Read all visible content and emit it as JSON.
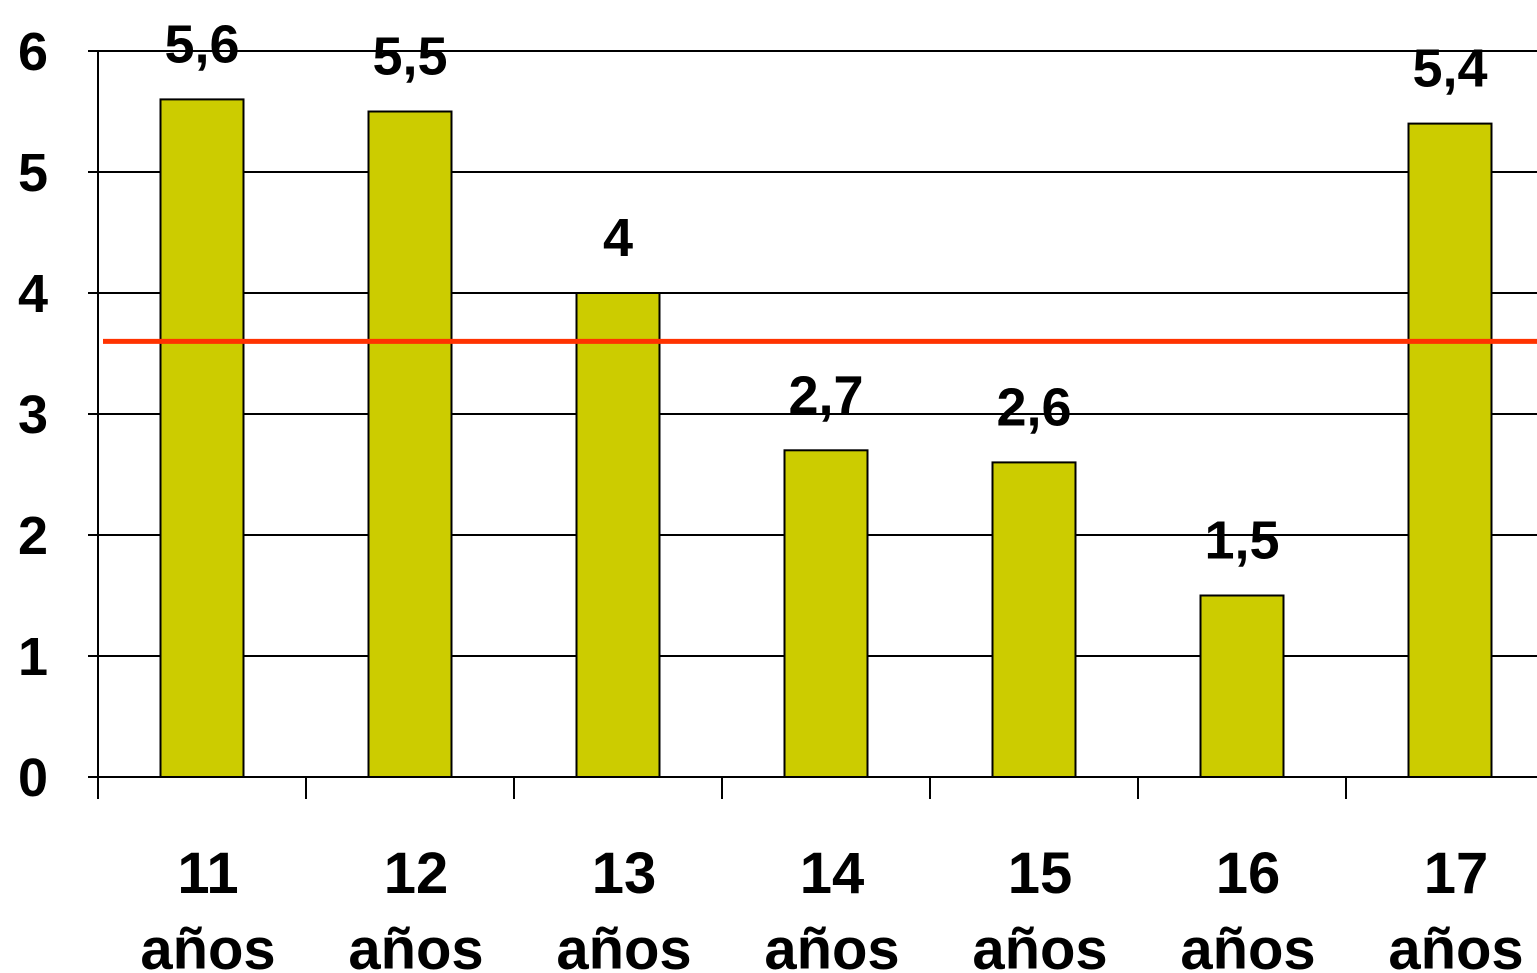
{
  "chart_data": {
    "type": "bar",
    "categories": [
      [
        "11",
        "años"
      ],
      [
        "12",
        "años"
      ],
      [
        "13",
        "años"
      ],
      [
        "14",
        "años"
      ],
      [
        "15",
        "años"
      ],
      [
        "16",
        "años"
      ],
      [
        "17",
        "años"
      ]
    ],
    "values": [
      5.6,
      5.5,
      4,
      2.7,
      2.6,
      1.5,
      5.4
    ],
    "data_labels": [
      "5,6",
      "5,5",
      "4",
      "2,7",
      "2,6",
      "1,5",
      "5,4"
    ],
    "yticks": [
      0,
      1,
      2,
      3,
      4,
      5,
      6
    ],
    "ylim": [
      0,
      6
    ],
    "grid": true,
    "reference_line": {
      "value": 3.6,
      "color": "#ff3300"
    },
    "colors": {
      "bar": "#cccc00",
      "bar_edge": "#000000",
      "grid": "#000000"
    }
  }
}
